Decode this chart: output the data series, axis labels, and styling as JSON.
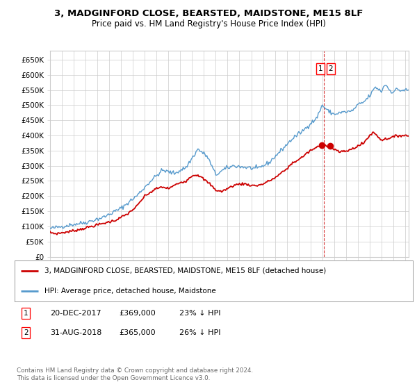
{
  "title1": "3, MADGINFORD CLOSE, BEARSTED, MAIDSTONE, ME15 8LF",
  "title2": "Price paid vs. HM Land Registry's House Price Index (HPI)",
  "ylabel_ticks": [
    "£0",
    "£50K",
    "£100K",
    "£150K",
    "£200K",
    "£250K",
    "£300K",
    "£350K",
    "£400K",
    "£450K",
    "£500K",
    "£550K",
    "£600K",
    "£650K"
  ],
  "ytick_values": [
    0,
    50000,
    100000,
    150000,
    200000,
    250000,
    300000,
    350000,
    400000,
    450000,
    500000,
    550000,
    600000,
    650000
  ],
  "ylim": [
    0,
    680000
  ],
  "xlim_start": 1995.0,
  "xlim_end": 2025.3,
  "legend_line1": "3, MADGINFORD CLOSE, BEARSTED, MAIDSTONE, ME15 8LF (detached house)",
  "legend_line2": "HPI: Average price, detached house, Maidstone",
  "sale1_date": "20-DEC-2017",
  "sale1_price": "£369,000",
  "sale1_hpi": "23% ↓ HPI",
  "sale2_date": "31-AUG-2018",
  "sale2_price": "£365,000",
  "sale2_hpi": "26% ↓ HPI",
  "footer": "Contains HM Land Registry data © Crown copyright and database right 2024.\nThis data is licensed under the Open Government Licence v3.0.",
  "red_color": "#cc0000",
  "blue_color": "#5599cc",
  "grid_color": "#cccccc",
  "bg_color": "#ffffff",
  "sale1_x": 2017.96,
  "sale1_y": 369000,
  "sale2_x": 2018.67,
  "sale2_y": 365000,
  "vline_x": 2018.15
}
